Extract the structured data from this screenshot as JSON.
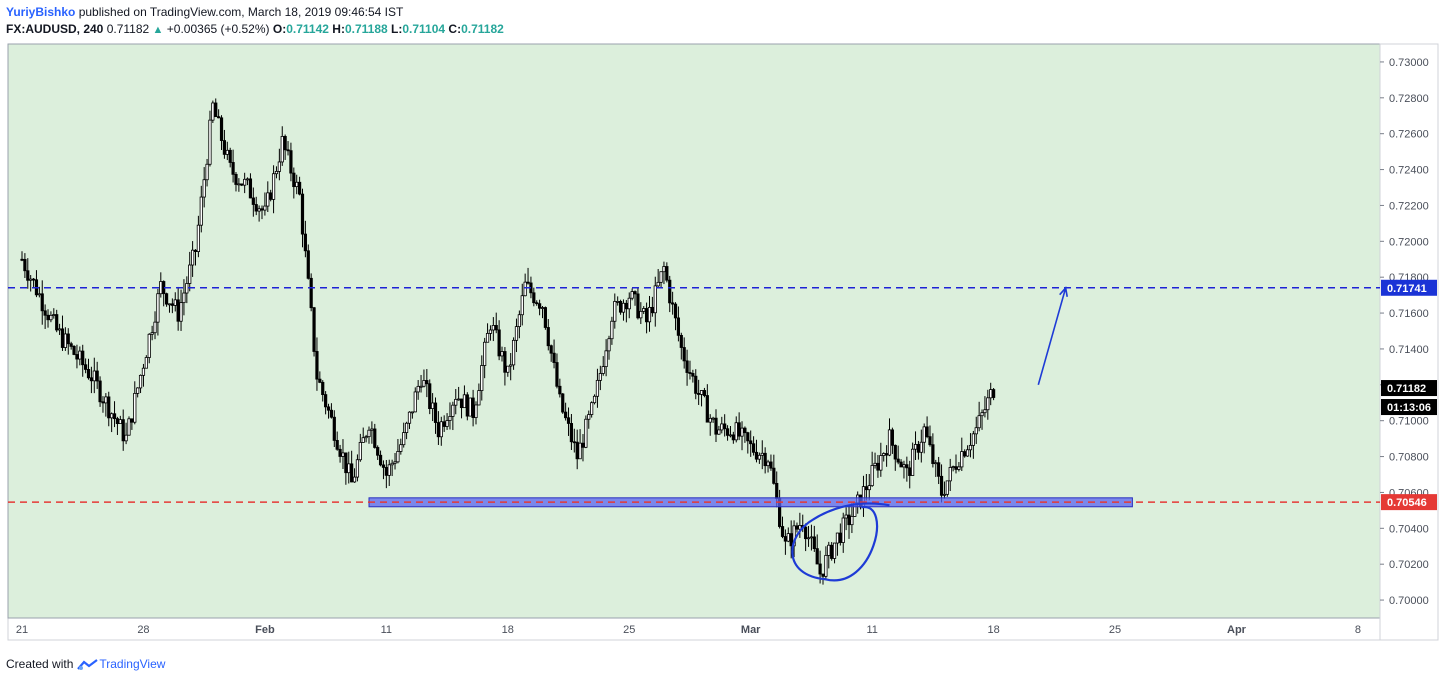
{
  "header": {
    "author": "YuriyBishko",
    "published": "published on TradingView.com, March 18, 2019 09:46:54 IST",
    "symbol": "FX:AUDUSD, 240",
    "last": "0.71182",
    "change": "+0.00365 (+0.52%)",
    "o_label": "O:",
    "o": "0.71142",
    "h_label": "H:",
    "h": "0.71188",
    "l_label": "L:",
    "l": "0.71104",
    "c_label": "C:",
    "c": "0.71182"
  },
  "footer": {
    "created": "Created with",
    "brand": "TradingView"
  },
  "colors": {
    "background": "#dcefdc",
    "up_candle": "#ffffff",
    "down_candle": "#000000",
    "resistance_line": "#1e22d6",
    "support_line": "#e53935",
    "zone": "#5b64f0",
    "drawing": "#1e3bd6"
  },
  "chart_data": {
    "type": "candlestick",
    "symbol": "FX:AUDUSD",
    "timeframe": "240",
    "ylim": [
      0.699,
      0.731
    ],
    "y_ticks": [
      "0.70000",
      "0.70200",
      "0.70400",
      "0.70600",
      "0.70800",
      "0.71000",
      "0.71200",
      "0.71400",
      "0.71600",
      "0.71800",
      "0.72000",
      "0.72200",
      "0.72400",
      "0.72600",
      "0.72800",
      "0.73000"
    ],
    "x_labels": [
      "21",
      "28",
      "Feb",
      "11",
      "18",
      "25",
      "Mar",
      "11",
      "18",
      "25",
      "Apr",
      "8"
    ],
    "key_points": [
      {
        "date": "Jan 21",
        "price": 0.719
      },
      {
        "date": "Jan 23",
        "price": 0.715
      },
      {
        "date": "Jan 25",
        "price": 0.7125
      },
      {
        "date": "Jan 27",
        "price": 0.709
      },
      {
        "date": "Jan 29",
        "price": 0.7175
      },
      {
        "date": "Jan 30",
        "price": 0.716
      },
      {
        "date": "Jan 31",
        "price": 0.7195
      },
      {
        "date": "Feb 1",
        "price": 0.7275
      },
      {
        "date": "Feb 2",
        "price": 0.724
      },
      {
        "date": "Feb 3",
        "price": 0.723
      },
      {
        "date": "Feb 4",
        "price": 0.7215
      },
      {
        "date": "Feb 5",
        "price": 0.7255
      },
      {
        "date": "Feb 6",
        "price": 0.7225
      },
      {
        "date": "Feb 7",
        "price": 0.7125
      },
      {
        "date": "Feb 8",
        "price": 0.7095
      },
      {
        "date": "Feb 9",
        "price": 0.7065
      },
      {
        "date": "Feb 10",
        "price": 0.71
      },
      {
        "date": "Feb 11",
        "price": 0.707
      },
      {
        "date": "Feb 12",
        "price": 0.709
      },
      {
        "date": "Feb 13",
        "price": 0.7125
      },
      {
        "date": "Feb 14",
        "price": 0.7095
      },
      {
        "date": "Feb 15",
        "price": 0.7115
      },
      {
        "date": "Feb 16",
        "price": 0.7105
      },
      {
        "date": "Feb 17",
        "price": 0.7155
      },
      {
        "date": "Feb 18",
        "price": 0.7125
      },
      {
        "date": "Feb 19",
        "price": 0.7175
      },
      {
        "date": "Feb 20",
        "price": 0.7165
      },
      {
        "date": "Feb 21",
        "price": 0.711
      },
      {
        "date": "Feb 22",
        "price": 0.708
      },
      {
        "date": "Feb 23",
        "price": 0.711
      },
      {
        "date": "Feb 24",
        "price": 0.716
      },
      {
        "date": "Feb 25",
        "price": 0.717
      },
      {
        "date": "Feb 26",
        "price": 0.7155
      },
      {
        "date": "Feb 27",
        "price": 0.7185
      },
      {
        "date": "Feb 28",
        "price": 0.714
      },
      {
        "date": "Mar 1",
        "price": 0.7115
      },
      {
        "date": "Mar 2",
        "price": 0.7095
      },
      {
        "date": "Mar 3",
        "price": 0.7095
      },
      {
        "date": "Mar 4",
        "price": 0.7085
      },
      {
        "date": "Mar 5",
        "price": 0.708
      },
      {
        "date": "Mar 6",
        "price": 0.703
      },
      {
        "date": "Mar 7",
        "price": 0.7045
      },
      {
        "date": "Mar 8",
        "price": 0.7015
      },
      {
        "date": "Mar 9",
        "price": 0.7035
      },
      {
        "date": "Mar 10",
        "price": 0.705
      },
      {
        "date": "Mar 11",
        "price": 0.707
      },
      {
        "date": "Mar 12",
        "price": 0.709
      },
      {
        "date": "Mar 13",
        "price": 0.707
      },
      {
        "date": "Mar 14",
        "price": 0.7095
      },
      {
        "date": "Mar 15",
        "price": 0.706
      },
      {
        "date": "Mar 16",
        "price": 0.708
      },
      {
        "date": "Mar 17",
        "price": 0.7095
      },
      {
        "date": "Mar 18",
        "price": 0.7118
      }
    ],
    "resistance": {
      "price": 0.71741,
      "label": "0.71741"
    },
    "support": {
      "price": 0.70546,
      "label": "0.70546"
    },
    "support_zone": {
      "top": 0.7057,
      "bottom": 0.7052,
      "from": "Feb 10",
      "to": "Mar 26"
    },
    "current_price": {
      "value": 0.71182,
      "label": "0.71182",
      "countdown": "01:13:06"
    },
    "annotations": [
      {
        "type": "arrow",
        "from": {
          "date": "Mar 20",
          "price": 0.712
        },
        "to": {
          "date": "Mar 21",
          "price": 0.7174
        }
      },
      {
        "type": "ellipse",
        "center": {
          "date": "Mar 9",
          "price": 0.7035
        },
        "note": "hand-drawn circle around double bottom"
      }
    ]
  }
}
